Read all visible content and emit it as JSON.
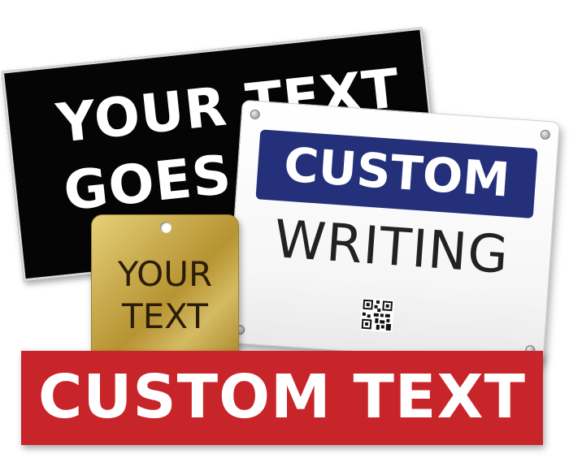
{
  "black_sign": {
    "line1": "YOUR TEXT",
    "line2": "GOES",
    "background": "#050505",
    "text_color": "#ffffff"
  },
  "white_sign": {
    "band_text": "CUSTOM",
    "body_text": "WRITING",
    "band_color": "#24317a",
    "qr_code": "qr-code-icon"
  },
  "brass_tag": {
    "line1": "YOUR",
    "line2": "TEXT",
    "color": "#c7a94c"
  },
  "red_banner": {
    "text": "CUSTOM TEXT",
    "color": "#c8252b"
  }
}
